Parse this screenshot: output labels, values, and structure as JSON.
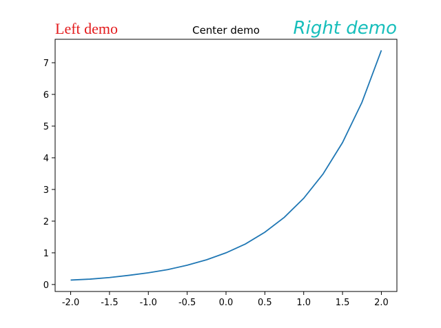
{
  "chart_data": {
    "type": "line",
    "titles": {
      "left": "Left demo",
      "center": "Center demo",
      "right": "Right demo"
    },
    "title_colors": {
      "left": "#e31a1c",
      "center": "#000000",
      "right": "#17bebb"
    },
    "xlabel": "",
    "ylabel": "",
    "xlim": [
      -2.2,
      2.2
    ],
    "ylim": [
      -0.22,
      7.74
    ],
    "xticks": [
      "-2.0",
      "-1.5",
      "-1.0",
      "-0.5",
      "0.0",
      "0.5",
      "1.0",
      "1.5",
      "2.0"
    ],
    "yticks": [
      "0",
      "1",
      "2",
      "3",
      "4",
      "5",
      "6",
      "7"
    ],
    "grid": false,
    "series": [
      {
        "color": "#1f77b4",
        "x": [
          -2.0,
          -1.75,
          -1.5,
          -1.25,
          -1.0,
          -0.75,
          -0.5,
          -0.25,
          0.0,
          0.25,
          0.5,
          0.75,
          1.0,
          1.25,
          1.5,
          1.75,
          2.0
        ],
        "y": [
          0.14,
          0.17,
          0.22,
          0.29,
          0.37,
          0.47,
          0.61,
          0.78,
          1.0,
          1.28,
          1.65,
          2.12,
          2.72,
          3.49,
          4.48,
          5.75,
          7.39
        ]
      }
    ]
  }
}
